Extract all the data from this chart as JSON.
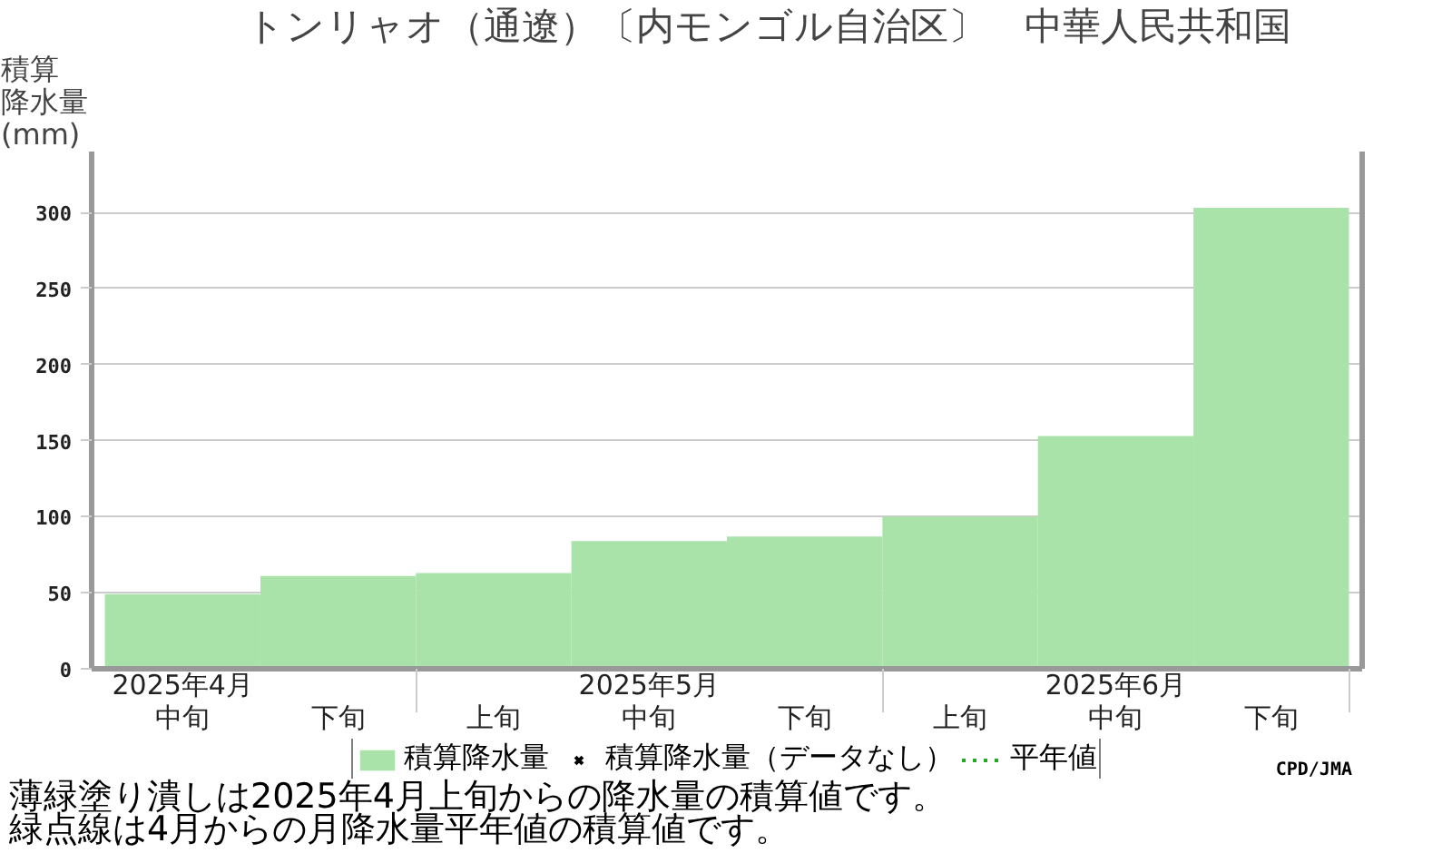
{
  "chart_data": {
    "type": "bar",
    "title": "トンリャオ（通遼）〔内モンゴル自治区〕　中華人民共和国",
    "ylabel": "積算降水量(mm)",
    "categories": [
      "2025年4月中旬",
      "下旬",
      "上旬",
      "2025年5月中旬",
      "下旬",
      "上旬",
      "2025年6月中旬",
      "下旬"
    ],
    "series": [
      {
        "name": "積算降水量",
        "color": "#aae3aa",
        "values": [
          49,
          61,
          63,
          84,
          87,
          100,
          153,
          303
        ]
      },
      {
        "name": "積算降水量（データなし）",
        "type": "scatter",
        "marker": "cross",
        "color": "#000000",
        "values": [
          null,
          null,
          null,
          null,
          null,
          null,
          null,
          null
        ]
      },
      {
        "name": "平年値",
        "type": "line",
        "line_style": "dotted",
        "color": "#22aa22",
        "values": [
          null,
          null,
          null,
          null,
          null,
          null,
          null,
          null
        ]
      }
    ],
    "ylim": [
      0,
      340
    ],
    "yticks": [
      0,
      50,
      100,
      150,
      200,
      250,
      300
    ],
    "grid": "y",
    "legend": "bottom",
    "annotations": [
      "CPD/JMA",
      "薄緑塗り潰しは2025年4月上旬からの降水量の積算値です。",
      "緑点線は4月からの月降水量平年値の積算値です。"
    ]
  }
}
